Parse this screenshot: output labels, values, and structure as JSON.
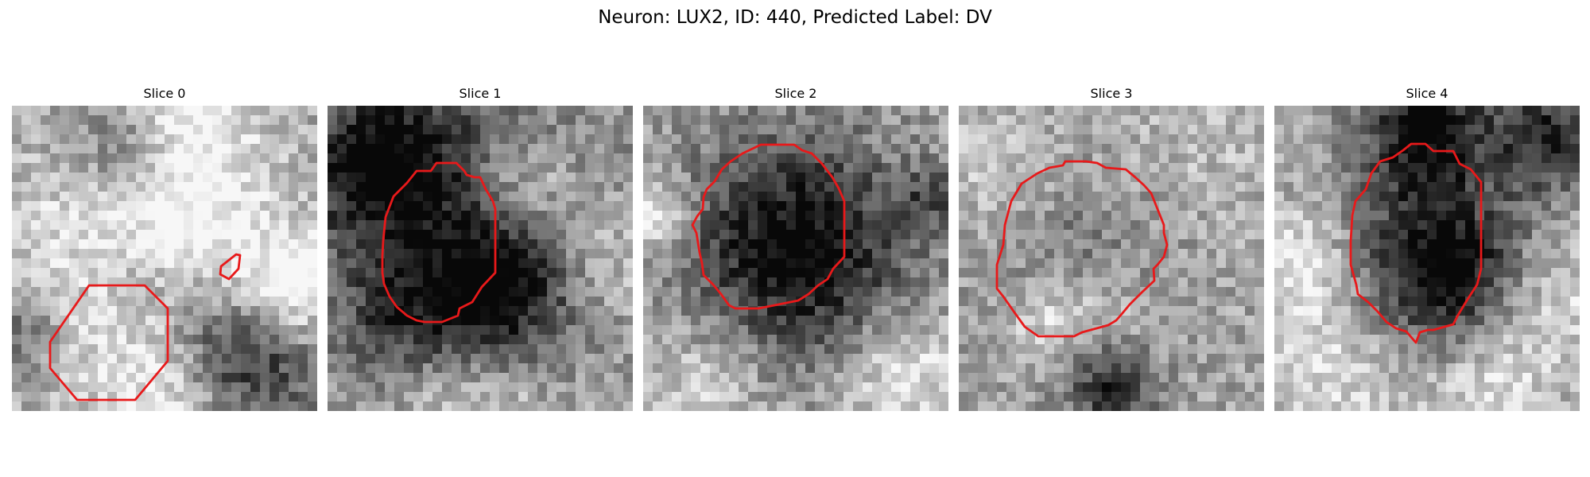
{
  "figure": {
    "title": "Neuron: LUX2, ID: 440, Predicted Label: DV",
    "contour_color": "#e8191a"
  },
  "panels": [
    {
      "title": "Slice 0",
      "blobs": [
        [
          0.4,
          0.14,
          0.2,
          -0.6
        ],
        [
          0.5,
          0.25,
          0.3,
          0.5
        ],
        [
          0.75,
          0.82,
          0.24,
          -0.65
        ],
        [
          0.4,
          0.55,
          0.16,
          -0.2
        ],
        [
          0.25,
          0.6,
          0.4,
          0.2
        ],
        [
          0.55,
          0.95,
          0.25,
          0.35
        ],
        [
          0.5,
          0.0,
          0.2,
          0.3
        ],
        [
          0.9,
          0.6,
          0.2,
          0.5
        ],
        [
          0.02,
          0.75,
          0.15,
          -0.3
        ]
      ]
    },
    {
      "title": "Slice 1",
      "blobs": [
        [
          0.4,
          0.2,
          0.5,
          -0.3
        ],
        [
          0.16,
          0.2,
          0.24,
          -0.5
        ],
        [
          0.62,
          0.57,
          0.32,
          -0.3
        ],
        [
          0.5,
          0.65,
          0.22,
          -0.4
        ],
        [
          0.65,
          0.25,
          0.18,
          0.35
        ],
        [
          0.9,
          0.5,
          0.2,
          0.25
        ],
        [
          0.5,
          0.95,
          0.25,
          0.25
        ],
        [
          0.2,
          0.7,
          0.2,
          -0.3
        ]
      ]
    },
    {
      "title": "Slice 2",
      "blobs": [
        [
          0.5,
          0.47,
          0.36,
          -0.65
        ],
        [
          0.03,
          0.35,
          0.12,
          0.4
        ],
        [
          0.85,
          0.88,
          0.2,
          0.3
        ],
        [
          0.2,
          0.9,
          0.25,
          0.2
        ],
        [
          0.8,
          0.4,
          0.2,
          0.0
        ],
        [
          0.95,
          0.3,
          0.1,
          -0.3
        ]
      ]
    },
    {
      "title": "Slice 3",
      "blobs": [
        [
          0.42,
          0.55,
          0.3,
          -0.2
        ],
        [
          0.5,
          0.92,
          0.15,
          -0.5
        ],
        [
          0.5,
          0.7,
          0.2,
          0.2
        ],
        [
          0.3,
          0.7,
          0.15,
          0.25
        ],
        [
          0.8,
          0.15,
          0.3,
          0.1
        ],
        [
          0.1,
          0.2,
          0.2,
          0.15
        ]
      ]
    },
    {
      "title": "Slice 4",
      "blobs": [
        [
          0.45,
          0.5,
          0.3,
          -0.35
        ],
        [
          0.5,
          0.08,
          0.2,
          -0.6
        ],
        [
          0.6,
          0.55,
          0.24,
          -0.4
        ],
        [
          0.9,
          0.1,
          0.18,
          -0.5
        ],
        [
          0.1,
          0.5,
          0.2,
          0.3
        ],
        [
          0.9,
          0.65,
          0.2,
          0.25
        ],
        [
          0.2,
          0.85,
          0.25,
          0.25
        ],
        [
          0.7,
          0.93,
          0.2,
          0.25
        ]
      ]
    }
  ]
}
